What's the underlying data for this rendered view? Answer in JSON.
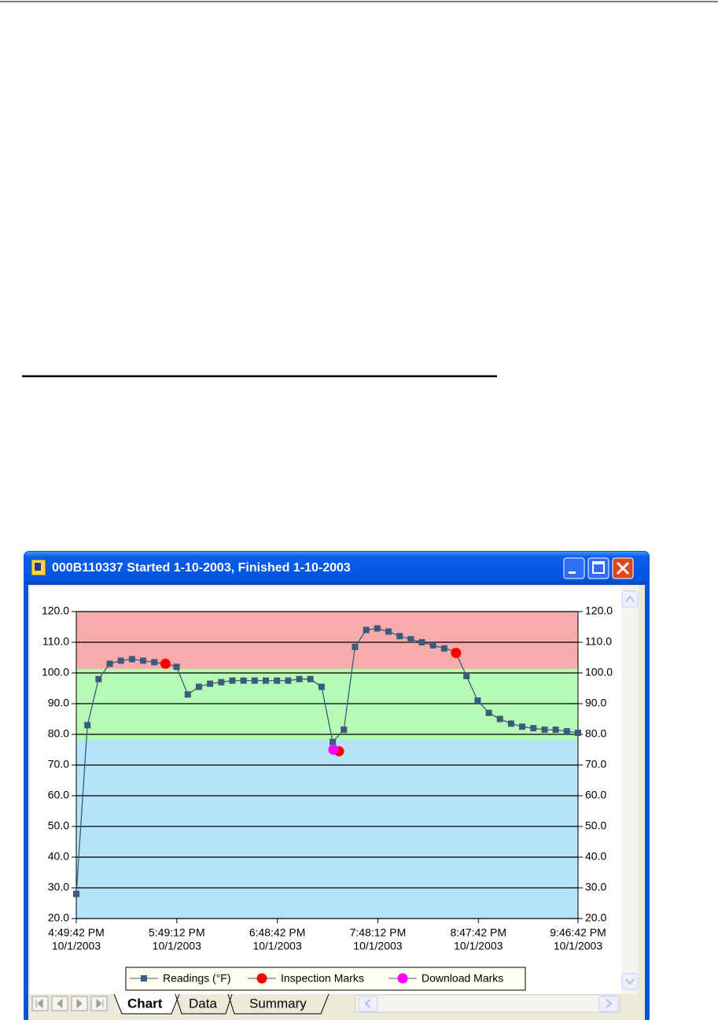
{
  "window": {
    "title": "000B110337 Started 1-10-2003, Finished 1-10-2003"
  },
  "tabs": [
    "Chart",
    "Data",
    "Summary"
  ],
  "chart_data": {
    "type": "line",
    "ylim": [
      20,
      120
    ],
    "yticks": [
      {
        "value": 20,
        "label": "20.0"
      },
      {
        "value": 30,
        "label": "30.0"
      },
      {
        "value": 40,
        "label": "40.0"
      },
      {
        "value": 50,
        "label": "50.0"
      },
      {
        "value": 60,
        "label": "60.0"
      },
      {
        "value": 70,
        "label": "70.0"
      },
      {
        "value": 80,
        "label": "80.0"
      },
      {
        "value": 90,
        "label": "90.0"
      },
      {
        "value": 100,
        "label": "100.0"
      },
      {
        "value": 110,
        "label": "110.0"
      },
      {
        "value": 120,
        "label": "120.0"
      }
    ],
    "xlim": [
      "4:49:42 PM",
      "9:46:42 PM"
    ],
    "xticks": [
      {
        "time": "4:49:42 PM",
        "date": "10/1/2003"
      },
      {
        "time": "5:49:12 PM",
        "date": "10/1/2003"
      },
      {
        "time": "6:48:42 PM",
        "date": "10/1/2003"
      },
      {
        "time": "7:48:12 PM",
        "date": "10/1/2003"
      },
      {
        "time": "8:47:42 PM",
        "date": "10/1/2003"
      },
      {
        "time": "9:46:42 PM",
        "date": "10/1/2003"
      }
    ],
    "grid": true,
    "bands": [
      {
        "from": 101.3,
        "to": 120,
        "color": "#f8abab"
      },
      {
        "from": 78.2,
        "to": 101.3,
        "color": "#b5fbb5"
      },
      {
        "from": 20,
        "to": 78.2,
        "color": "#b5e3f8"
      }
    ],
    "series": [
      {
        "name": "Readings (°F)",
        "type": "line",
        "color": "#3b5b7e",
        "x": [
          "4:49:42 PM",
          "4:56:18 PM",
          "5:02:54 PM",
          "5:09:30 PM",
          "5:16:06 PM",
          "5:22:42 PM",
          "5:29:18 PM",
          "5:35:54 PM",
          "5:42:30 PM",
          "5:49:06 PM",
          "5:55:42 PM",
          "6:02:18 PM",
          "6:08:54 PM",
          "6:15:30 PM",
          "6:22:06 PM",
          "6:28:42 PM",
          "6:35:18 PM",
          "6:41:54 PM",
          "6:48:30 PM",
          "6:55:06 PM",
          "7:01:42 PM",
          "7:08:18 PM",
          "7:14:54 PM",
          "7:21:30 PM",
          "7:28:06 PM",
          "7:34:42 PM",
          "7:41:18 PM",
          "7:47:54 PM",
          "7:54:30 PM",
          "8:01:06 PM",
          "8:07:42 PM",
          "8:14:18 PM",
          "8:20:54 PM",
          "8:27:30 PM",
          "8:34:06 PM",
          "8:40:42 PM",
          "8:47:18 PM",
          "8:53:54 PM",
          "9:00:30 PM",
          "9:07:06 PM",
          "9:13:42 PM",
          "9:20:18 PM",
          "9:26:54 PM",
          "9:33:30 PM",
          "9:40:06 PM",
          "9:46:42 PM"
        ],
        "values": [
          28,
          83,
          98,
          103,
          104,
          104.5,
          104,
          103.5,
          103,
          102,
          93,
          95.5,
          96.5,
          97,
          97.5,
          97.5,
          97.5,
          97.5,
          97.5,
          97.5,
          98,
          98,
          95.5,
          77.5,
          81.5,
          108.5,
          114,
          114.5,
          113.5,
          112,
          111,
          110,
          109,
          108,
          107,
          99,
          91,
          87,
          85,
          83.5,
          82.5,
          82,
          81.5,
          81.5,
          81,
          80.5
        ]
      },
      {
        "name": "Inspection Marks",
        "type": "scatter",
        "color": "#ff0000",
        "x": [
          "5:42:30 PM",
          "7:25:11 PM",
          "8:34:32 PM"
        ],
        "values": [
          103,
          74.5,
          106.5
        ]
      },
      {
        "name": "Download Marks",
        "type": "scatter",
        "color": "#ff00ff",
        "x": [
          "7:21:55 PM"
        ],
        "values": [
          75
        ]
      }
    ]
  }
}
